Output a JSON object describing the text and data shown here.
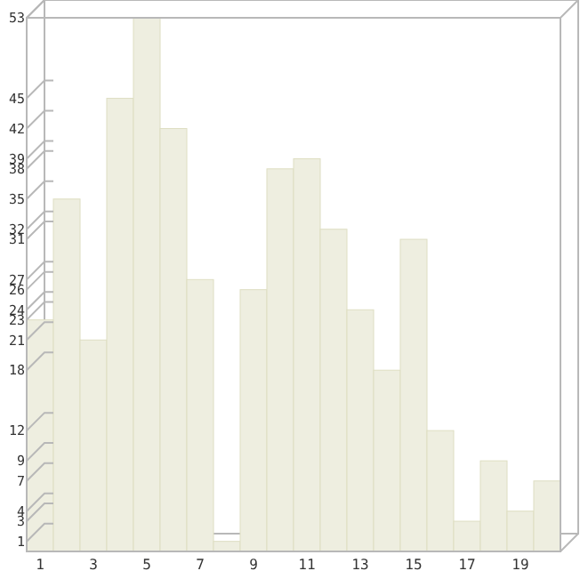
{
  "chart_data": {
    "type": "bar",
    "categories": [
      "1",
      null,
      "3",
      null,
      "5",
      null,
      "7",
      null,
      "9",
      null,
      "11",
      null,
      "13",
      null,
      "15",
      null,
      "17",
      null,
      "19",
      null
    ],
    "values": [
      23,
      35,
      21,
      45,
      53,
      42,
      27,
      1,
      26,
      38,
      39,
      32,
      24,
      18,
      31,
      12,
      3,
      9,
      4,
      7
    ],
    "color": "#eeeee0",
    "ylim": [
      0,
      53
    ],
    "yticks": [
      1,
      3,
      4,
      7,
      9,
      12,
      18,
      21,
      23,
      24,
      26,
      27,
      31,
      32,
      35,
      38,
      39,
      42,
      45,
      53
    ],
    "grid": false
  }
}
